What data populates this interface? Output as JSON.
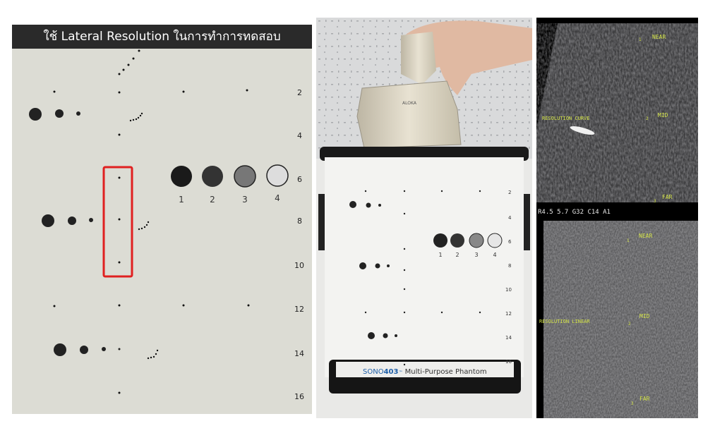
{
  "left_panel": {
    "title": "ใช้ Lateral Resolution ในการทำการทดสอบ",
    "depth_labels": [
      "2",
      "4",
      "6",
      "8",
      "10",
      "12",
      "14",
      "16"
    ],
    "target_labels": [
      "1",
      "2",
      "3",
      "4"
    ],
    "highlight_color": "#e02020"
  },
  "middle_photo": {
    "probe_brand": "ALOKA",
    "phantom_brand_prefix": "SONO",
    "phantom_brand_model": "403",
    "phantom_brand_tm": "™",
    "phantom_name": "Multi-Purpose Phantom",
    "depth_labels": [
      "2",
      "4",
      "6",
      "8",
      "10",
      "12",
      "14",
      "16"
    ],
    "target_labels": [
      "1",
      "2",
      "3",
      "4"
    ]
  },
  "ultrasound_top": {
    "near_label": "NEAR",
    "mid_label": "MID",
    "far_label": "FAR",
    "curve_label": "RESOLUTION CURVE",
    "status_bar": "R4.5 5.7 G32 C14 A1",
    "marker_1": "1",
    "marker_2": "2",
    "marker_3": "3"
  },
  "ultrasound_bottom": {
    "near_label": "NEAR",
    "mid_label": "MID",
    "far_label": "FAR",
    "linear_label": "RESOLUTION LINEAR",
    "marker_1": "1",
    "marker_2": "2",
    "marker_3": "3"
  }
}
